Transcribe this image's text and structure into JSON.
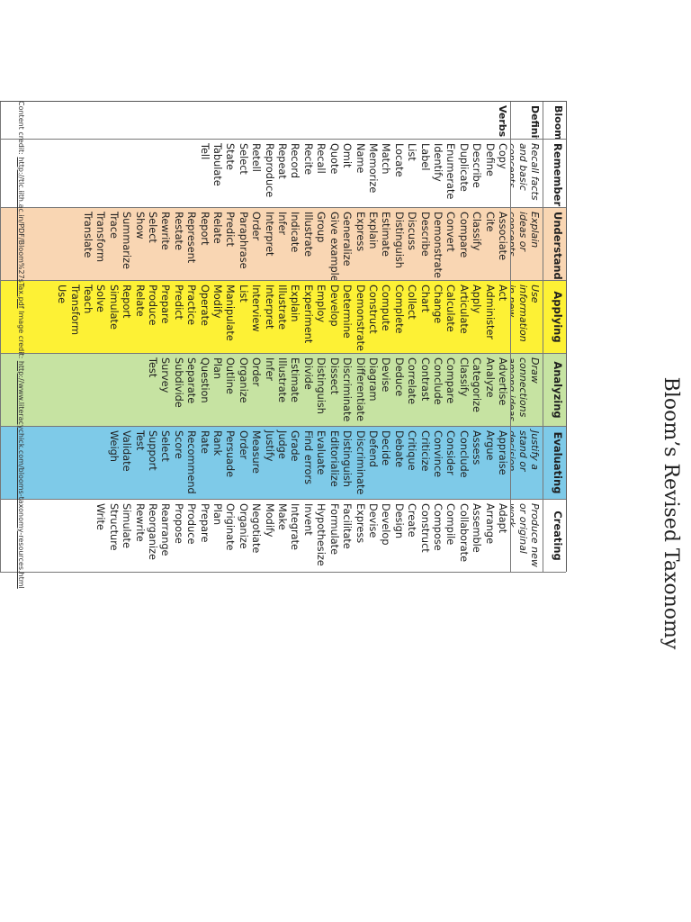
{
  "title": "Bloom’s Revised Taxonomy",
  "row_labels": {
    "header": "Bloom’s",
    "definition": "Definition",
    "verbs": "Verbs"
  },
  "columns": [
    {
      "name": "Remembering",
      "definition": "Recall facts and basic concepts",
      "verbs": [
        "Copy",
        "Define",
        "Describe",
        "Duplicate",
        "Enumerate",
        "Identify",
        "Label",
        "List",
        "Locate",
        "Match",
        "Memorize",
        "Name",
        "Omit",
        "Quote",
        "Recall",
        "Recite",
        "Record",
        "Repeat",
        "Reproduce",
        "Retell",
        "Select",
        "State",
        "Tabulate",
        "Tell"
      ]
    },
    {
      "name": "Understanding",
      "definition": "Explain ideas or concepts",
      "verbs": [
        "Associate",
        "Cite",
        "Classify",
        "Compare",
        "Convert",
        "Demonstrate",
        "Describe",
        "Discuss",
        "Distinguish",
        "Estimate",
        "Explain",
        "Express",
        "Generalize",
        "Give examples",
        "Group",
        "Illustrate",
        "Indicate",
        "Infer",
        "Interpret",
        "Order",
        "Paraphrase",
        "Predict",
        "Relate",
        "Report",
        "Represent",
        "Restate",
        "Rewrite",
        "Select",
        "Show",
        "Summarize",
        "Trace",
        "Transform",
        "Translate"
      ]
    },
    {
      "name": "Applying",
      "definition": "Use information in new situations",
      "verbs": [
        "Act",
        "Administer",
        "Apply",
        "Articulate",
        "Calculate",
        "Change",
        "Chart",
        "Collect",
        "Complete",
        "Compute",
        "Construct",
        "Demonstrate",
        "Determine",
        "Develop",
        "Employ",
        "Experiment",
        "Explain",
        "Illustrate",
        "Interpret",
        "Interview",
        "List",
        "Manipulate",
        "Modify",
        "Operate",
        "Practice",
        "Predict",
        "Prepare",
        "Produce",
        "Relate",
        "Report",
        "Simulate",
        "Solve",
        "Teach",
        "Transform",
        "Use"
      ]
    },
    {
      "name": "Analyzing",
      "definition": "Draw connections among ideas",
      "verbs": [
        "Advertise",
        "Analyze",
        "Categorize",
        "Classify",
        "Compare",
        "Conclude",
        "Contrast",
        "Correlate",
        "Deduce",
        "Devise",
        "Diagram",
        "Differentiate",
        "Discriminate",
        "Dissect",
        "Distinguish",
        "Divide",
        "Estimate",
        "Illustrate",
        "Infer",
        "Order",
        "Organize",
        "Outline",
        "Plan",
        "Question",
        "Separate",
        "Subdivide",
        "Survey",
        "Test"
      ]
    },
    {
      "name": "Evaluating",
      "definition": "Justify a stand or decision",
      "verbs": [
        "Appraise",
        "Argue",
        "Assess",
        "Conclude",
        "Consider",
        "Convince",
        "Criticize",
        "Critique",
        "Debate",
        "Decide",
        "Defend",
        "Discriminate",
        "Distinguish",
        "Editorialize",
        "Evaluate",
        "Find errors",
        "Grade",
        "Judge",
        "Justify",
        "Measure",
        "Order",
        "Persuade",
        "Rank",
        "Rate",
        "Recommend",
        "Score",
        "Select",
        "Support",
        "Test",
        "Validate",
        "Weigh"
      ]
    },
    {
      "name": "Creating",
      "definition": "Produce new or original work",
      "verbs": [
        "Adapt",
        "Arrange",
        "Assemble",
        "Collaborate",
        "Compile",
        "Compose",
        "Construct",
        "Create",
        "Design",
        "Develop",
        "Devise",
        "Express",
        "Facilitate",
        "Formulate",
        "Hypothesize",
        "Invent",
        "Integrate",
        "Make",
        "Modify",
        "Negotiate",
        "Organize",
        "Originate",
        "Plan",
        "Prepare",
        "Produce",
        "Propose",
        "Rearrange",
        "Reorganize",
        "Rewrite",
        "Simulate",
        "Structure",
        "Write"
      ]
    }
  ],
  "credit": {
    "content_label": "Content credit:",
    "content_url": "http://tlc.iith.ac.in/PDF/Bloom%27sTax.pdf",
    "image_label": "Image credit:",
    "image_url": "http://www.literacychick.com/blooms-taxonomy-resources.html"
  }
}
